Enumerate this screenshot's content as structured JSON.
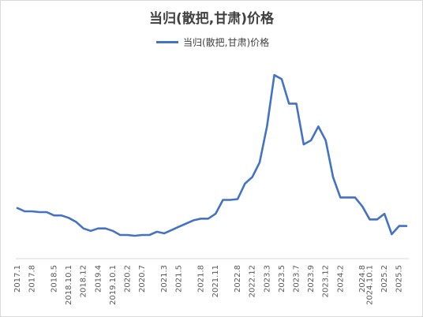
{
  "chart_data": {
    "type": "line",
    "title": "当归(散把,甘肃)价格",
    "xlabel": "",
    "ylabel": "",
    "legend": {
      "position": "top",
      "entries": [
        "当归(散把,甘肃)价格"
      ]
    },
    "grid": false,
    "ylim": [
      0,
      330
    ],
    "series": [
      {
        "name": "当归(散把,甘肃)价格",
        "color": "#4472C4",
        "x": [
          "2017.1",
          "2017.4",
          "2017.8",
          "2017.11",
          "2018.2",
          "2018.5",
          "2018.7",
          "2018.10.1",
          "2018.11",
          "2018.12",
          "2019.2",
          "2019.4",
          "2019.7",
          "2019.10.1",
          "2019.12",
          "2020.2",
          "2020.4",
          "2020.7",
          "2020.9",
          "2020.12",
          "2021.3",
          "2021.4",
          "2021.5",
          "2021.6",
          "2021.7",
          "2021.8",
          "2021.9",
          "2021.11",
          "2022.2",
          "2022.5",
          "2022.8",
          "2022.10",
          "2022.12",
          "2023.1",
          "2023.3",
          "2023.4",
          "2023.5",
          "2023.6",
          "2023.7",
          "2023.8",
          "2023.9",
          "2023.10",
          "2023.12",
          "2024.1",
          "2024.2",
          "2024.4",
          "2024.6",
          "2024.8",
          "2024.10.1",
          "2024.12",
          "2025.2",
          "2025.3",
          "2025.5",
          "2025.8"
        ],
        "values": [
          62,
          58,
          58,
          57,
          57,
          53,
          53,
          50,
          45,
          37,
          34,
          37,
          37,
          34,
          29,
          29,
          28,
          29,
          29,
          33,
          31,
          35,
          39,
          43,
          47,
          49,
          49,
          55,
          72,
          72,
          73,
          92,
          100,
          118,
          162,
          225,
          220,
          190,
          190,
          140,
          145,
          162,
          145,
          100,
          75,
          75,
          75,
          64,
          48,
          48,
          55,
          30,
          40,
          40
        ]
      }
    ],
    "x_tick_labels": [
      "2017.1",
      "2017.8",
      "2018.5",
      "2018.10.1",
      "2018.12",
      "2019.4",
      "2019.10.1",
      "2020.2",
      "2020.7",
      "2021.3",
      "2021.5",
      "2021.8",
      "2021.11",
      "2022.8",
      "2022.12",
      "2023.3",
      "2023.5",
      "2023.7",
      "2023.9",
      "2023.12",
      "2024.2",
      "2024.8",
      "2024.10.1",
      "2025.2",
      "2025.5"
    ]
  }
}
